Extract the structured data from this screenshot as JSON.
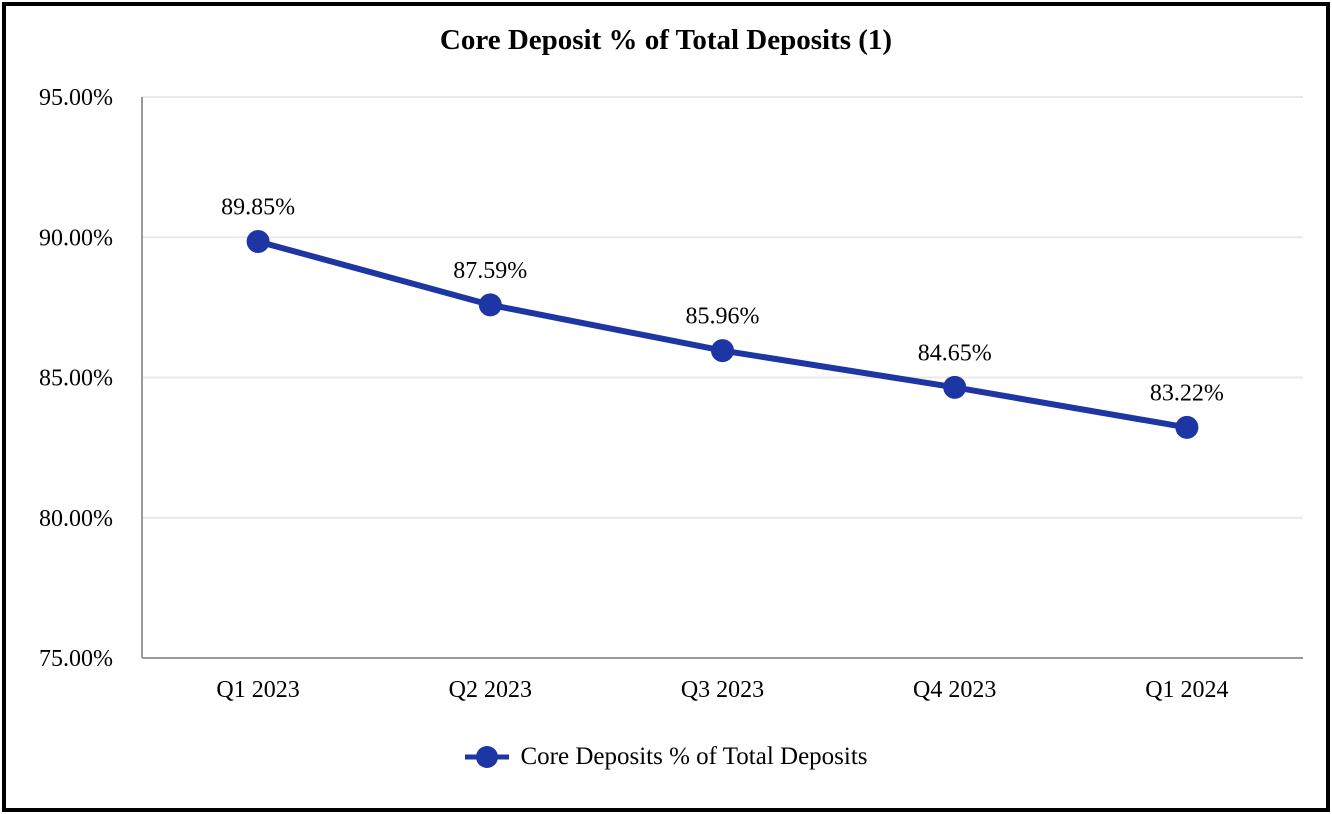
{
  "title": "Core Deposit % of Total Deposits (1)",
  "colors": {
    "line": "#1e35a4",
    "marker": "#1e35a4",
    "grid": "#e9e9e9",
    "axis": "#999999",
    "text": "#000000",
    "frame": "#000000",
    "background": "#ffffff"
  },
  "chart_data": {
    "type": "line",
    "title": "Core Deposit % of Total Deposits (1)",
    "categories": [
      "Q1 2023",
      "Q2 2023",
      "Q3 2023",
      "Q4 2023",
      "Q1 2024"
    ],
    "series": [
      {
        "name": "Core Deposits % of Total Deposits",
        "values": [
          89.85,
          87.59,
          85.96,
          84.65,
          83.22
        ]
      }
    ],
    "data_labels": [
      "89.85%",
      "87.59%",
      "85.96%",
      "84.65%",
      "83.22%"
    ],
    "xlabel": "",
    "ylabel": "",
    "y_axis": {
      "min": 75,
      "max": 95,
      "step": 5,
      "tick_labels": [
        "75.00%",
        "80.00%",
        "85.00%",
        "90.00%",
        "95.00%"
      ]
    },
    "grid": true,
    "legend": {
      "position": "bottom",
      "label": "Core Deposits % of Total Deposits"
    }
  }
}
